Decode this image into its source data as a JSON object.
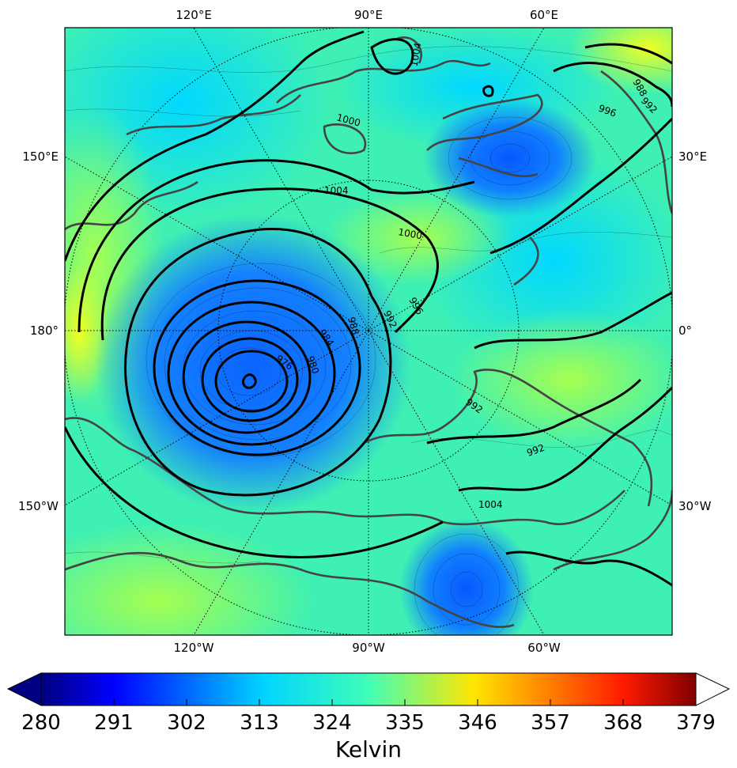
{
  "map": {
    "projection": "north polar stereographic",
    "field": "potential temperature (shaded) with sea-level pressure isobars (black contours)",
    "colormap": "jet",
    "top_longitude_labels": [
      "120°E",
      "90°E",
      "60°E"
    ],
    "bottom_longitude_labels": [
      "120°W",
      "90°W",
      "60°W"
    ],
    "left_longitude_labels": [
      "150°E",
      "180°",
      "150°W"
    ],
    "right_longitude_labels": [
      "30°E",
      "0°",
      "30°W"
    ],
    "isobar_labels": [
      "1000",
      "1004",
      "988",
      "992",
      "996",
      "1000",
      "1004",
      "976",
      "980",
      "984",
      "988",
      "992",
      "996",
      "992",
      "992",
      "1004"
    ]
  },
  "colorbar": {
    "ticks": [
      "280",
      "291",
      "302",
      "313",
      "324",
      "335",
      "346",
      "357",
      "368",
      "379"
    ],
    "title": "Kelvin",
    "min": 280,
    "max": 379,
    "extend": "both"
  }
}
